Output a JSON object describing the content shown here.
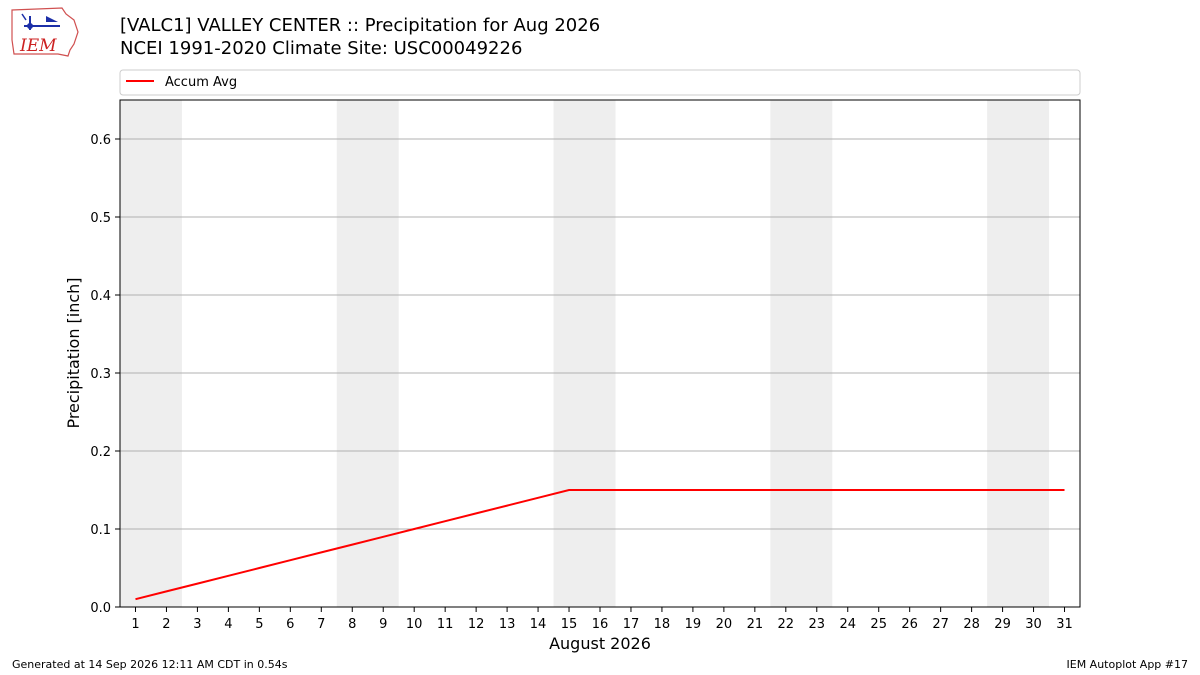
{
  "header": {
    "title_line1": "[VALC1] VALLEY CENTER :: Precipitation for Aug 2026",
    "title_line2": "NCEI 1991-2020 Climate Site: USC00049226",
    "logo_text": "IEM"
  },
  "footer": {
    "left": "Generated at 14 Sep 2026 12:11 AM CDT in 0.54s",
    "right": "IEM Autoplot App #17"
  },
  "colors": {
    "series": "#ff0000",
    "weekend_band": "#eeeeee",
    "grid": "#b0b0b0"
  },
  "chart_data": {
    "type": "line",
    "xlabel": "August 2026",
    "ylabel": "Precipitation [inch]",
    "xlim": [
      0.5,
      31.5
    ],
    "ylim": [
      0,
      0.65
    ],
    "x_ticks": [
      1,
      2,
      3,
      4,
      5,
      6,
      7,
      8,
      9,
      10,
      11,
      12,
      13,
      14,
      15,
      16,
      17,
      18,
      19,
      20,
      21,
      22,
      23,
      24,
      25,
      26,
      27,
      28,
      29,
      30,
      31
    ],
    "y_ticks": [
      0.0,
      0.1,
      0.2,
      0.3,
      0.4,
      0.5,
      0.6
    ],
    "y_tick_labels": [
      "0.0",
      "0.1",
      "0.2",
      "0.3",
      "0.4",
      "0.5",
      "0.6"
    ],
    "grid": "horizontal",
    "legend": "top, spanning width",
    "weekend_bands": [
      [
        0.5,
        2.5
      ],
      [
        7.5,
        9.5
      ],
      [
        14.5,
        16.5
      ],
      [
        21.5,
        23.5
      ],
      [
        28.5,
        30.5
      ]
    ],
    "series": [
      {
        "name": "Accum Avg",
        "x": [
          1,
          2,
          3,
          4,
          5,
          6,
          7,
          8,
          9,
          10,
          11,
          12,
          13,
          14,
          15,
          16,
          17,
          18,
          19,
          20,
          21,
          22,
          23,
          24,
          25,
          26,
          27,
          28,
          29,
          30,
          31
        ],
        "values": [
          0.01,
          0.02,
          0.03,
          0.04,
          0.05,
          0.06,
          0.07,
          0.08,
          0.09,
          0.1,
          0.11,
          0.12,
          0.13,
          0.14,
          0.15,
          0.15,
          0.15,
          0.15,
          0.15,
          0.15,
          0.15,
          0.15,
          0.15,
          0.15,
          0.15,
          0.15,
          0.15,
          0.15,
          0.15,
          0.15,
          0.15
        ]
      }
    ]
  }
}
